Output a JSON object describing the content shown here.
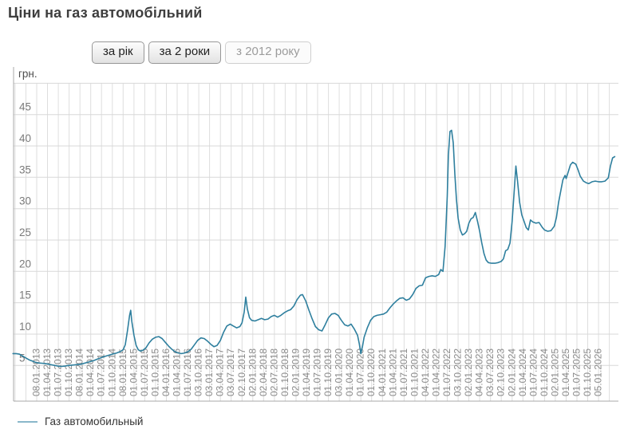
{
  "header": {
    "title": "Ціни на газ автомобільний"
  },
  "toolbar": {
    "buttons": [
      {
        "label": "за рік",
        "state": "default"
      },
      {
        "label": "за 2 роки",
        "state": "default"
      },
      {
        "label": "з 2012 року",
        "state": "current"
      }
    ]
  },
  "legend": {
    "items": [
      {
        "label": "Газ автомобильный",
        "color": "#8ab7ca"
      }
    ]
  },
  "chart_data": {
    "type": "line",
    "title": "Ціни на газ автомобільний",
    "legend_position": "bottom-left",
    "grid": true,
    "y_axis": {
      "unit_label": "грн.",
      "ticks": [
        5,
        10,
        15,
        20,
        25,
        30,
        35,
        40,
        45
      ],
      "range": [
        0,
        50.5
      ],
      "gridline_max": 50
    },
    "x_axis": {
      "note": "quarterly ticks; data starts mid-2012 ('з 2012 року' view)",
      "x_domain": [
        -2.2,
        53.8
      ],
      "tick_labels": [
        "08.01.2013",
        "01.04.2013",
        "01.07.2013",
        "01.10.2013",
        "08.01.2014",
        "01.04.2014",
        "01.07.2014",
        "01.10.2014",
        "08.01.2015",
        "01.04.2015",
        "01.07.2015",
        "01.10.2015",
        "04.01.2016",
        "01.04.2016",
        "01.07.2016",
        "03.10.2016",
        "03.01.2017",
        "03.04.2017",
        "03.07.2017",
        "02.10.2017",
        "02.01.2018",
        "02.04.2018",
        "02.07.2018",
        "01.10.2018",
        "02.01.2019",
        "01.04.2019",
        "01.07.2019",
        "01.10.2019",
        "03.01.2020",
        "01.04.2020",
        "01.07.2020",
        "01.10.2020",
        "04.01.2021",
        "01.04.2021",
        "01.07.2021",
        "01.10.2021",
        "04.01.2022",
        "01.04.2022",
        "01.07.2022",
        "03.10.2022",
        "02.01.2023",
        "04.04.2023",
        "03.07.2023",
        "02.10.2023",
        "02.01.2024",
        "01.04.2024",
        "01.07.2024",
        "01.10.2024",
        "02.01.2025",
        "01.04.2025",
        "01.07.2025",
        "01.10.2025",
        "05.01.2026"
      ]
    },
    "series": [
      {
        "name": "Газ автомобильный",
        "color": "#2e7f9e",
        "legend_color": "#8ab7ca",
        "points": [
          [
            -2.2,
            6.9
          ],
          [
            -1.9,
            6.9
          ],
          [
            -1.6,
            6.8
          ],
          [
            -1.3,
            6.5
          ],
          [
            -1.0,
            6.2
          ],
          [
            -0.7,
            5.9
          ],
          [
            -0.4,
            5.7
          ],
          [
            -0.1,
            5.5
          ],
          [
            0.2,
            5.4
          ],
          [
            0.5,
            5.35
          ],
          [
            0.8,
            5.3
          ],
          [
            1.1,
            5.2
          ],
          [
            1.4,
            5.1
          ],
          [
            1.7,
            5.0
          ],
          [
            2.0,
            4.9
          ],
          [
            2.3,
            4.85
          ],
          [
            2.6,
            4.9
          ],
          [
            2.9,
            5.0
          ],
          [
            3.2,
            5.05
          ],
          [
            3.5,
            5.1
          ],
          [
            3.8,
            5.15
          ],
          [
            4.1,
            5.2
          ],
          [
            4.4,
            5.35
          ],
          [
            4.7,
            5.5
          ],
          [
            5.0,
            5.65
          ],
          [
            5.3,
            5.8
          ],
          [
            5.6,
            6.0
          ],
          [
            5.9,
            6.2
          ],
          [
            6.2,
            6.4
          ],
          [
            6.5,
            6.55
          ],
          [
            6.8,
            6.7
          ],
          [
            7.1,
            6.85
          ],
          [
            7.4,
            7.0
          ],
          [
            7.7,
            7.2
          ],
          [
            8.0,
            7.5
          ],
          [
            8.2,
            8.3
          ],
          [
            8.4,
            10.5
          ],
          [
            8.6,
            13.0
          ],
          [
            8.7,
            13.8
          ],
          [
            8.8,
            12.0
          ],
          [
            9.0,
            9.8
          ],
          [
            9.2,
            8.2
          ],
          [
            9.4,
            7.5
          ],
          [
            9.6,
            7.3
          ],
          [
            9.8,
            7.4
          ],
          [
            10.1,
            7.8
          ],
          [
            10.4,
            8.6
          ],
          [
            10.7,
            9.2
          ],
          [
            11.0,
            9.5
          ],
          [
            11.3,
            9.6
          ],
          [
            11.6,
            9.3
          ],
          [
            11.9,
            8.7
          ],
          [
            12.2,
            8.1
          ],
          [
            12.5,
            7.6
          ],
          [
            12.8,
            7.2
          ],
          [
            13.1,
            7.0
          ],
          [
            13.4,
            6.9
          ],
          [
            13.7,
            7.0
          ],
          [
            14.0,
            7.2
          ],
          [
            14.3,
            7.6
          ],
          [
            14.6,
            8.3
          ],
          [
            14.9,
            9.0
          ],
          [
            15.2,
            9.4
          ],
          [
            15.5,
            9.3
          ],
          [
            15.8,
            8.9
          ],
          [
            16.1,
            8.4
          ],
          [
            16.4,
            8.0
          ],
          [
            16.7,
            8.2
          ],
          [
            17.0,
            9.0
          ],
          [
            17.3,
            10.3
          ],
          [
            17.6,
            11.3
          ],
          [
            17.9,
            11.6
          ],
          [
            18.2,
            11.3
          ],
          [
            18.5,
            11.0
          ],
          [
            18.8,
            11.2
          ],
          [
            19.0,
            11.8
          ],
          [
            19.2,
            13.5
          ],
          [
            19.35,
            15.9
          ],
          [
            19.5,
            14.0
          ],
          [
            19.7,
            12.6
          ],
          [
            19.9,
            12.2
          ],
          [
            20.2,
            12.1
          ],
          [
            20.5,
            12.3
          ],
          [
            20.8,
            12.5
          ],
          [
            21.1,
            12.3
          ],
          [
            21.4,
            12.4
          ],
          [
            21.7,
            12.8
          ],
          [
            22.0,
            13.0
          ],
          [
            22.3,
            12.7
          ],
          [
            22.6,
            13.0
          ],
          [
            22.9,
            13.4
          ],
          [
            23.2,
            13.7
          ],
          [
            23.5,
            13.9
          ],
          [
            23.8,
            14.5
          ],
          [
            24.1,
            15.5
          ],
          [
            24.4,
            16.2
          ],
          [
            24.6,
            16.3
          ],
          [
            24.9,
            15.3
          ],
          [
            25.2,
            13.8
          ],
          [
            25.5,
            12.4
          ],
          [
            25.8,
            11.2
          ],
          [
            26.1,
            10.7
          ],
          [
            26.4,
            10.5
          ],
          [
            26.7,
            11.5
          ],
          [
            27.0,
            12.6
          ],
          [
            27.3,
            13.2
          ],
          [
            27.6,
            13.3
          ],
          [
            27.9,
            13.0
          ],
          [
            28.2,
            12.2
          ],
          [
            28.5,
            11.5
          ],
          [
            28.8,
            11.3
          ],
          [
            29.1,
            11.6
          ],
          [
            29.4,
            10.8
          ],
          [
            29.7,
            9.8
          ],
          [
            29.85,
            8.5
          ],
          [
            30.0,
            6.9
          ],
          [
            30.15,
            8.0
          ],
          [
            30.3,
            9.5
          ],
          [
            30.6,
            11.0
          ],
          [
            30.9,
            12.2
          ],
          [
            31.2,
            12.8
          ],
          [
            31.5,
            13.0
          ],
          [
            31.8,
            13.1
          ],
          [
            32.1,
            13.2
          ],
          [
            32.4,
            13.5
          ],
          [
            32.7,
            14.2
          ],
          [
            33.0,
            14.8
          ],
          [
            33.3,
            15.3
          ],
          [
            33.6,
            15.7
          ],
          [
            33.9,
            15.8
          ],
          [
            34.2,
            15.4
          ],
          [
            34.5,
            15.6
          ],
          [
            34.8,
            16.3
          ],
          [
            35.1,
            17.3
          ],
          [
            35.4,
            17.7
          ],
          [
            35.7,
            17.8
          ],
          [
            36.0,
            19.0
          ],
          [
            36.3,
            19.2
          ],
          [
            36.6,
            19.3
          ],
          [
            36.9,
            19.2
          ],
          [
            37.2,
            19.5
          ],
          [
            37.4,
            20.3
          ],
          [
            37.6,
            20.0
          ],
          [
            37.8,
            24.0
          ],
          [
            38.0,
            32.0
          ],
          [
            38.1,
            38.5
          ],
          [
            38.25,
            42.3
          ],
          [
            38.4,
            42.5
          ],
          [
            38.55,
            40.5
          ],
          [
            38.7,
            35.5
          ],
          [
            38.85,
            31.5
          ],
          [
            39.0,
            28.5
          ],
          [
            39.2,
            26.6
          ],
          [
            39.4,
            25.8
          ],
          [
            39.6,
            26.0
          ],
          [
            39.8,
            26.4
          ],
          [
            40.0,
            27.7
          ],
          [
            40.2,
            28.4
          ],
          [
            40.4,
            28.6
          ],
          [
            40.6,
            29.4
          ],
          [
            40.8,
            28.0
          ],
          [
            41.0,
            26.4
          ],
          [
            41.2,
            24.5
          ],
          [
            41.4,
            22.8
          ],
          [
            41.6,
            21.8
          ],
          [
            41.8,
            21.4
          ],
          [
            42.1,
            21.3
          ],
          [
            42.4,
            21.3
          ],
          [
            42.7,
            21.4
          ],
          [
            43.0,
            21.6
          ],
          [
            43.2,
            22.0
          ],
          [
            43.4,
            23.3
          ],
          [
            43.6,
            23.5
          ],
          [
            43.8,
            24.5
          ],
          [
            44.0,
            28.0
          ],
          [
            44.2,
            33.0
          ],
          [
            44.35,
            36.8
          ],
          [
            44.5,
            34.5
          ],
          [
            44.7,
            31.0
          ],
          [
            44.9,
            29.0
          ],
          [
            45.1,
            28.0
          ],
          [
            45.3,
            27.0
          ],
          [
            45.5,
            26.6
          ],
          [
            45.7,
            28.2
          ],
          [
            45.9,
            27.9
          ],
          [
            46.2,
            27.7
          ],
          [
            46.5,
            27.8
          ],
          [
            46.8,
            27.0
          ],
          [
            47.0,
            26.6
          ],
          [
            47.3,
            26.4
          ],
          [
            47.6,
            26.5
          ],
          [
            47.9,
            27.2
          ],
          [
            48.1,
            28.6
          ],
          [
            48.3,
            31.0
          ],
          [
            48.5,
            32.8
          ],
          [
            48.7,
            34.6
          ],
          [
            48.9,
            35.3
          ],
          [
            49.0,
            34.8
          ],
          [
            49.2,
            35.9
          ],
          [
            49.4,
            37.0
          ],
          [
            49.6,
            37.4
          ],
          [
            49.9,
            37.1
          ],
          [
            50.1,
            36.2
          ],
          [
            50.3,
            35.2
          ],
          [
            50.6,
            34.4
          ],
          [
            50.9,
            34.1
          ],
          [
            51.1,
            34.0
          ],
          [
            51.4,
            34.3
          ],
          [
            51.7,
            34.4
          ],
          [
            52.0,
            34.3
          ],
          [
            52.3,
            34.3
          ],
          [
            52.6,
            34.4
          ],
          [
            52.9,
            34.9
          ],
          [
            53.1,
            36.8
          ],
          [
            53.3,
            38.1
          ],
          [
            53.5,
            38.3
          ]
        ]
      }
    ]
  }
}
